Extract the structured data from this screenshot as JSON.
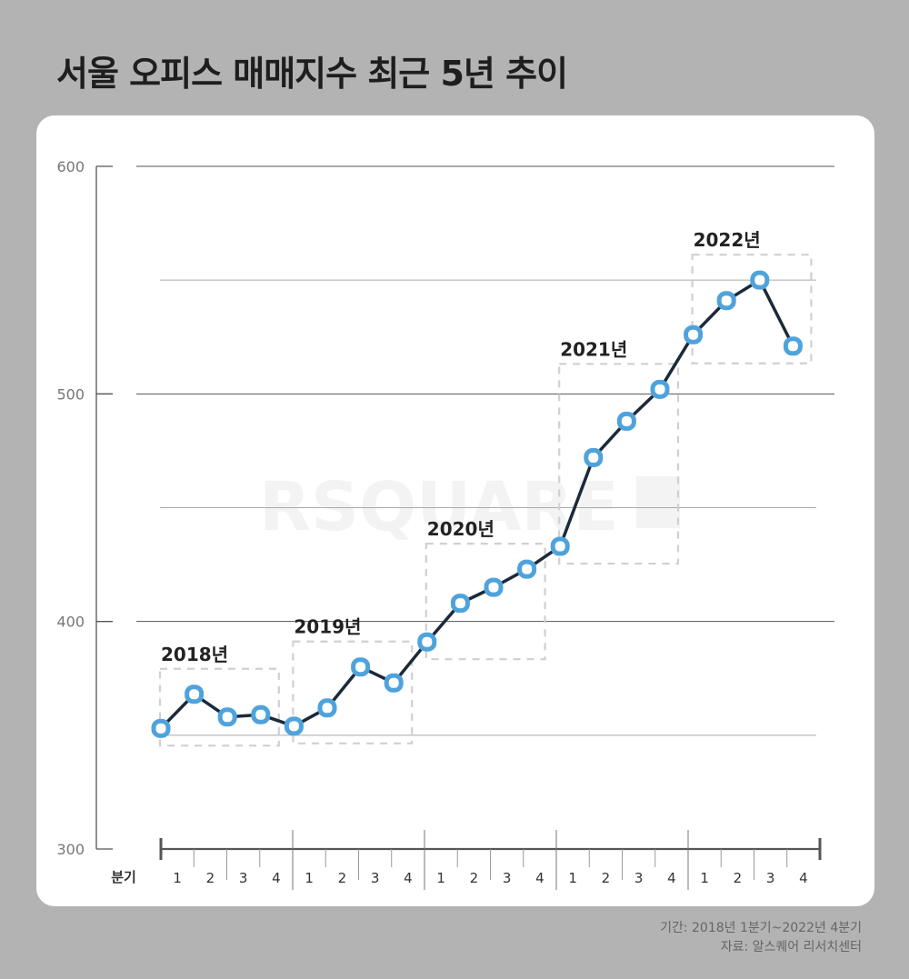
{
  "header": {
    "title": "서울 오피스 매매지수 최근 5년 추이"
  },
  "footer": {
    "period": "기간: 2018년 1분기~2022년 4분기",
    "source": "자료: 알스퀘어 리서치센터"
  },
  "watermark": "RSQUARE",
  "colors": {
    "background": "#b3b3b3",
    "card": "#ffffff",
    "line": "#1b2a3a",
    "marker": "#4fa3dc",
    "year_box": "#d0d0d0",
    "grid_major": "#555555",
    "grid_minor": "#aaaaaa"
  },
  "chart_data": {
    "type": "line",
    "title": "서울 오피스 매매지수 최근 5년 추이",
    "xlabel": "분기",
    "ylabel": "",
    "ylim": [
      300,
      600
    ],
    "yticks": [
      300,
      400,
      500,
      600
    ],
    "minor_gridlines": [
      350,
      450,
      550
    ],
    "grid": true,
    "legend": null,
    "year_groups": [
      "2018년",
      "2019년",
      "2020년",
      "2021년",
      "2022년"
    ],
    "quarter_labels": [
      "1",
      "2",
      "3",
      "4"
    ],
    "categories": [
      "2018 Q1",
      "2018 Q2",
      "2018 Q3",
      "2018 Q4",
      "2019 Q1",
      "2019 Q2",
      "2019 Q3",
      "2019 Q4",
      "2020 Q1",
      "2020 Q2",
      "2020 Q3",
      "2020 Q4",
      "2021 Q1",
      "2021 Q2",
      "2021 Q3",
      "2021 Q4",
      "2022 Q1",
      "2022 Q2",
      "2022 Q3",
      "2022 Q4"
    ],
    "series": [
      {
        "name": "서울 오피스 매매지수",
        "values": [
          353,
          368,
          358,
          359,
          354,
          362,
          380,
          373,
          391,
          408,
          415,
          423,
          433,
          472,
          488,
          502,
          526,
          541,
          550,
          521
        ]
      }
    ]
  }
}
